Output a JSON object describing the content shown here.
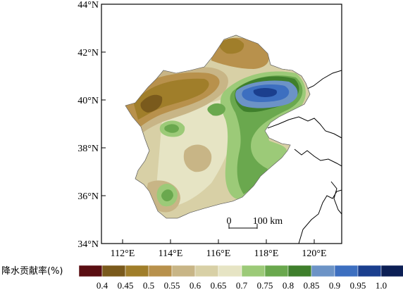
{
  "map": {
    "lat_labels": [
      "44°N",
      "42°N",
      "40°N",
      "38°N",
      "36°N",
      "34°N"
    ],
    "lon_labels": [
      "112°E",
      "114°E",
      "116°E",
      "118°E",
      "120°E"
    ],
    "scale_bar": {
      "start": "0",
      "end": "100 km"
    }
  },
  "legend": {
    "title": "降水贡献率(%)",
    "labels": [
      "0.4",
      "0.45",
      "0.5",
      "0.55",
      "0.6",
      "0.65",
      "0.7",
      "0.75",
      "0.8",
      "0.85",
      "0.9",
      "0.95",
      "1.0"
    ],
    "colors": [
      "#5a0e12",
      "#7a5a1c",
      "#a07e2a",
      "#b8914c",
      "#c8b586",
      "#d8d0a6",
      "#e6e4c4",
      "#9cca78",
      "#6aa84e",
      "#3f7f2c",
      "#6c93c6",
      "#3d6fc0",
      "#1b3f8e",
      "#0c1f55"
    ]
  },
  "colors": {
    "ocean": "#ffffff",
    "region_base": "#d8d0a6"
  }
}
